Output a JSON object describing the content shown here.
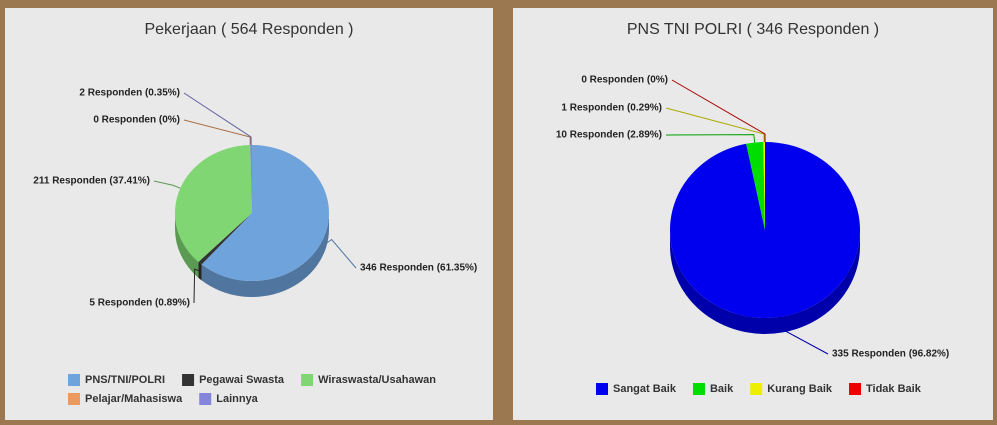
{
  "chart_data": [
    {
      "type": "pie",
      "title": "Pekerjaan ( 564 Responden )",
      "categories": [
        "PNS/TNI/POLRI",
        "Pegawai Swasta",
        "Wiraswasta/Usahawan",
        "Pelajar/Mahasiswa",
        "Lainnya"
      ],
      "values": [
        346,
        5,
        211,
        0,
        2
      ],
      "value_labels": [
        "346 Responden (61.35%)",
        "5 Responden (0.89%)",
        "211 Responden (37.41%)",
        "0 Responden (0%)",
        "2 Responden (0.35%)"
      ],
      "colors": [
        "#6fa3dc",
        "#333333",
        "#7fd672",
        "#ec9a5f",
        "#8585dc"
      ]
    },
    {
      "type": "pie",
      "title": "PNS TNI POLRI ( 346 Responden )",
      "categories": [
        "Sangat Baik",
        "Baik",
        "Kurang Baik",
        "Tidak Baik"
      ],
      "values": [
        335,
        10,
        1,
        0
      ],
      "value_labels": [
        "335 Responden (96.82%)",
        "10 Responden (2.89%)",
        "1 Responden (0.29%)",
        "0 Responden (0%)"
      ],
      "colors": [
        "#0000ee",
        "#00dd00",
        "#eeee00",
        "#ee0000"
      ]
    }
  ]
}
